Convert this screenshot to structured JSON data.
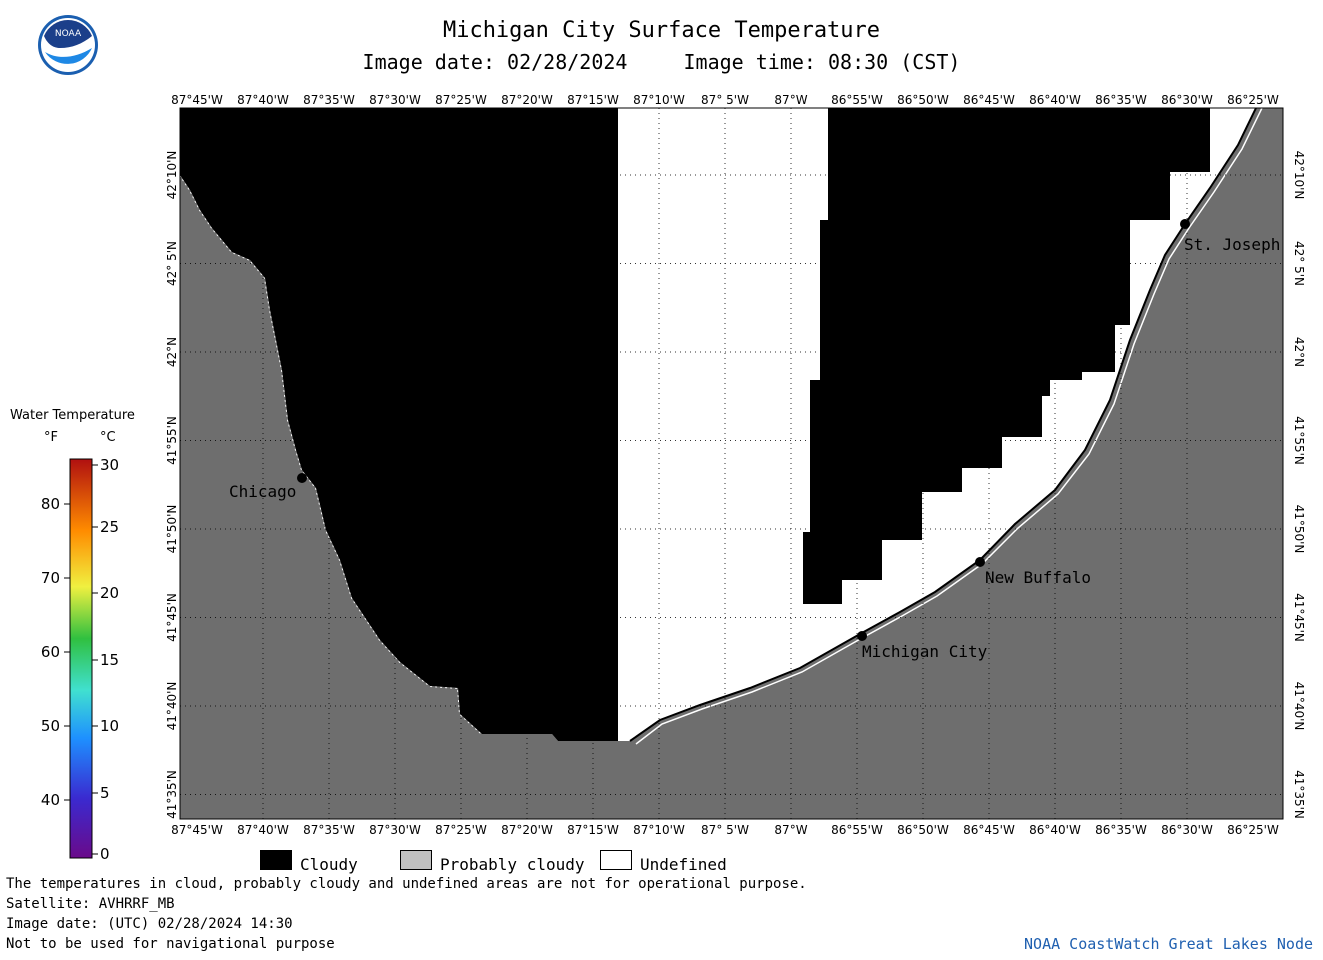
{
  "header": {
    "title": "Michigan City Surface Temperature",
    "image_date": "Image date: 02/28/2024",
    "image_time": "Image time: 08:30 (CST)"
  },
  "logo": {
    "text": "NOAA",
    "icon": "noaa-logo-icon"
  },
  "map": {
    "lon_labels": [
      "87°45'W",
      "87°40'W",
      "87°35'W",
      "87°30'W",
      "87°25'W",
      "87°20'W",
      "87°15'W",
      "87°10'W",
      "87° 5'W",
      "87°W",
      "86°55'W",
      "86°50'W",
      "86°45'W",
      "86°40'W",
      "86°35'W",
      "86°30'W",
      "86°25'W"
    ],
    "lat_labels": [
      "42°10'N",
      "42° 5'N",
      "42°N",
      "41°55'N",
      "41°50'N",
      "41°45'N",
      "41°40'N",
      "41°35'N"
    ],
    "cities": [
      {
        "name": "Chicago"
      },
      {
        "name": "Michigan City"
      },
      {
        "name": "New Buffalo"
      },
      {
        "name": "St. Joseph"
      }
    ],
    "colors": {
      "land": "#6e6e6e",
      "cloudy": "#000000",
      "undefined": "#ffffff",
      "probably_cloudy": "#c0c0c0"
    }
  },
  "legend": {
    "title": "Water Temperature",
    "unit_f": "°F",
    "unit_c": "°C",
    "f_ticks": [
      "80",
      "70",
      "60",
      "50",
      "40"
    ],
    "c_ticks": [
      "30",
      "25",
      "20",
      "15",
      "10",
      "5",
      "0"
    ]
  },
  "key": {
    "cloudy": "Cloudy",
    "probably_cloudy": "Probably cloudy",
    "undefined": "Undefined"
  },
  "notes": {
    "line1": "The temperatures in cloud, probably cloudy and undefined areas are not for operational purpose.",
    "line2": "Satellite: AVHRRF_MB",
    "line3": "Image date: (UTC) 02/28/2024  14:30",
    "line4": "Not to be used for navigational purpose"
  },
  "credit": "NOAA CoastWatch Great Lakes Node"
}
